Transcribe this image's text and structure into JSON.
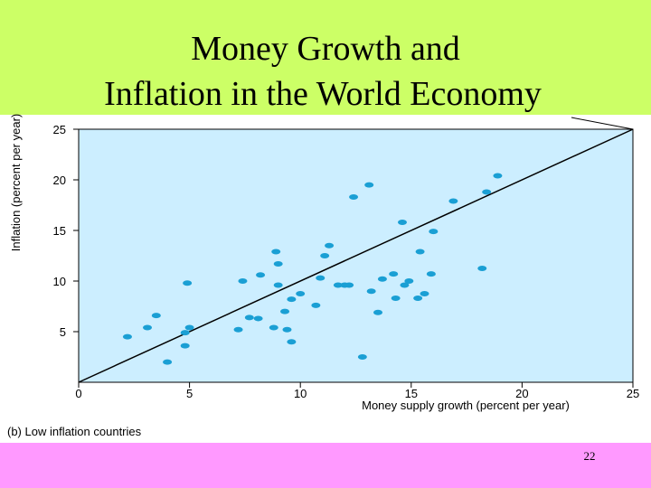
{
  "chart_data": {
    "type": "scatter",
    "title": [
      "Money Growth and",
      "Inflation in the World Economy"
    ],
    "subtitle": "(b) Low inflation countries",
    "x_label": "Money supply growth (percent per year)",
    "y_label": "Inflation (percent per year)",
    "page_number": "22",
    "x": [
      2.2,
      3.1,
      3.5,
      4.0,
      4.9,
      4.8,
      5.0,
      4.8,
      7.2,
      7.4,
      7.7,
      8.1,
      8.2,
      8.9,
      9.0,
      9.0,
      8.8,
      9.3,
      9.4,
      9.6,
      9.6,
      10.0,
      10.7,
      10.9,
      11.1,
      11.3,
      11.7,
      12.0,
      12.2,
      12.4,
      12.8,
      13.1,
      13.2,
      13.5,
      13.7,
      14.2,
      14.3,
      14.6,
      14.7,
      14.9,
      15.3,
      15.4,
      15.6,
      15.9,
      16.0,
      16.9,
      18.2,
      18.4,
      18.9
    ],
    "values": [
      4.5,
      5.4,
      6.6,
      2.0,
      9.8,
      4.9,
      5.4,
      3.6,
      5.2,
      10.0,
      6.4,
      6.3,
      10.6,
      12.9,
      11.7,
      9.6,
      5.4,
      7.0,
      5.2,
      8.2,
      4.0,
      8.75,
      7.6,
      10.3,
      12.5,
      13.5,
      9.6,
      9.6,
      9.6,
      18.3,
      2.5,
      19.5,
      9.0,
      6.9,
      10.2,
      10.7,
      8.3,
      15.8,
      9.6,
      10.0,
      8.3,
      12.9,
      8.75,
      10.7,
      14.9,
      17.9,
      11.25,
      18.8,
      20.4
    ],
    "color": "#1a9fd4",
    "xlim": [
      0,
      25
    ],
    "ylim": [
      0,
      25
    ],
    "xticks": [
      0,
      5,
      10,
      15,
      20,
      25
    ],
    "yticks": [
      5,
      10,
      15,
      20,
      25
    ]
  }
}
